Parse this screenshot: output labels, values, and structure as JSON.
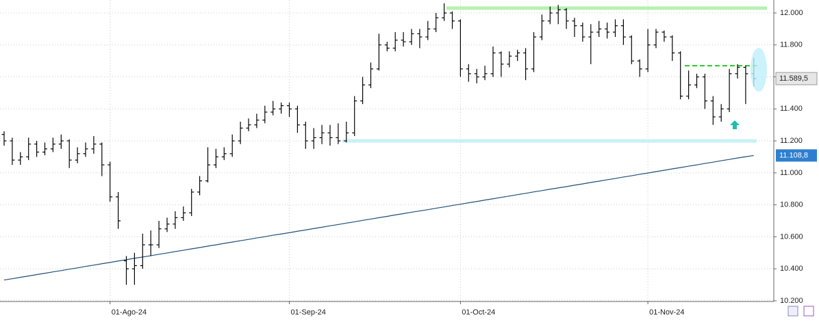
{
  "chart_data": {
    "type": "ohlc",
    "color": "#000000",
    "last_label": "11.589,5",
    "ylim": [
      10200,
      12081
    ],
    "yticks": [
      {
        "value": 10200,
        "label": "10.200"
      },
      {
        "value": 10400,
        "label": "10.400"
      },
      {
        "value": 10600,
        "label": "10.600"
      },
      {
        "value": 10800,
        "label": "10.800"
      },
      {
        "value": 11000,
        "label": "11.000"
      },
      {
        "value": 11200,
        "label": "11.200"
      },
      {
        "value": 11400,
        "label": "11.400"
      },
      {
        "value": 11600,
        "label": "11.600"
      },
      {
        "value": 11800,
        "label": "11.800"
      },
      {
        "value": 12000,
        "label": "12.000"
      }
    ],
    "grid": true,
    "categories": [
      null,
      null,
      null,
      null,
      null,
      null,
      null,
      null,
      null,
      null,
      null,
      null,
      null,
      "01-Ago-24",
      null,
      null,
      null,
      null,
      null,
      null,
      null,
      null,
      null,
      null,
      null,
      null,
      null,
      null,
      null,
      null,
      null,
      null,
      null,
      null,
      null,
      "01-Sep-24",
      null,
      null,
      null,
      null,
      null,
      null,
      null,
      null,
      null,
      null,
      null,
      null,
      null,
      null,
      null,
      null,
      null,
      null,
      null,
      null,
      "01-Oct-24",
      null,
      null,
      null,
      null,
      null,
      null,
      null,
      null,
      null,
      null,
      null,
      null,
      null,
      null,
      null,
      null,
      null,
      null,
      null,
      null,
      null,
      null,
      "01-Nov-24",
      null,
      null,
      null,
      null,
      null,
      null,
      null,
      null,
      null,
      null,
      null,
      null,
      null
    ],
    "ohlc": [
      [
        11240,
        11260,
        11170,
        11200
      ],
      [
        11200,
        11220,
        11050,
        11080
      ],
      [
        11080,
        11130,
        11050,
        11100
      ],
      [
        11100,
        11220,
        11080,
        11180
      ],
      [
        11180,
        11200,
        11100,
        11130
      ],
      [
        11130,
        11190,
        11110,
        11150
      ],
      [
        11150,
        11220,
        11130,
        11180
      ],
      [
        11180,
        11240,
        11150,
        11200
      ],
      [
        11200,
        11210,
        11030,
        11080
      ],
      [
        11080,
        11160,
        11060,
        11120
      ],
      [
        11120,
        11190,
        11100,
        11150
      ],
      [
        11150,
        11230,
        11120,
        11180
      ],
      [
        11180,
        11190,
        10980,
        11050
      ],
      [
        11050,
        11070,
        10820,
        10850
      ],
      [
        10850,
        10880,
        10650,
        10700
      ],
      [
        10450,
        10480,
        10300,
        10400
      ],
      [
        10400,
        10500,
        10300,
        10420
      ],
      [
        10420,
        10620,
        10400,
        10550
      ],
      [
        10550,
        10640,
        10480,
        10550
      ],
      [
        10550,
        10700,
        10530,
        10650
      ],
      [
        10650,
        10720,
        10630,
        10680
      ],
      [
        10680,
        10760,
        10650,
        10720
      ],
      [
        10720,
        10790,
        10700,
        10750
      ],
      [
        10750,
        10900,
        10730,
        10880
      ],
      [
        10880,
        10980,
        10860,
        10950
      ],
      [
        10950,
        11160,
        10940,
        11050
      ],
      [
        11050,
        11150,
        11030,
        11100
      ],
      [
        11100,
        11160,
        11080,
        11120
      ],
      [
        11120,
        11240,
        11100,
        11200
      ],
      [
        11200,
        11320,
        11180,
        11280
      ],
      [
        11280,
        11340,
        11260,
        11300
      ],
      [
        11300,
        11370,
        11280,
        11330
      ],
      [
        11330,
        11420,
        11310,
        11380
      ],
      [
        11380,
        11450,
        11360,
        11400
      ],
      [
        11400,
        11440,
        11370,
        11420
      ],
      [
        11420,
        11440,
        11350,
        11400
      ],
      [
        11400,
        11420,
        11250,
        11300
      ],
      [
        11300,
        11320,
        11150,
        11200
      ],
      [
        11200,
        11280,
        11150,
        11220
      ],
      [
        11220,
        11300,
        11180,
        11250
      ],
      [
        11250,
        11300,
        11170,
        11220
      ],
      [
        11220,
        11310,
        11180,
        11200
      ],
      [
        11200,
        11320,
        11190,
        11250
      ],
      [
        11250,
        11480,
        11230,
        11450
      ],
      [
        11450,
        11600,
        11430,
        11550
      ],
      [
        11550,
        11690,
        11530,
        11650
      ],
      [
        11650,
        11870,
        11640,
        11800
      ],
      [
        11800,
        11820,
        11760,
        11780
      ],
      [
        11780,
        11880,
        11760,
        11830
      ],
      [
        11830,
        11880,
        11790,
        11820
      ],
      [
        11820,
        11900,
        11800,
        11870
      ],
      [
        11870,
        11900,
        11780,
        11850
      ],
      [
        11850,
        11950,
        11830,
        11900
      ],
      [
        11900,
        12000,
        11880,
        11970
      ],
      [
        11970,
        12060,
        11950,
        12000
      ],
      [
        12000,
        12010,
        11900,
        11950
      ],
      [
        11950,
        11960,
        11600,
        11650
      ],
      [
        11650,
        11680,
        11570,
        11620
      ],
      [
        11620,
        11650,
        11560,
        11600
      ],
      [
        11600,
        11670,
        11580,
        11620
      ],
      [
        11620,
        11790,
        11600,
        11750
      ],
      [
        11750,
        11760,
        11600,
        11680
      ],
      [
        11680,
        11760,
        11660,
        11730
      ],
      [
        11730,
        11770,
        11700,
        11750
      ],
      [
        11750,
        11780,
        11580,
        11650
      ],
      [
        11650,
        11880,
        11630,
        11850
      ],
      [
        11850,
        11990,
        11830,
        11950
      ],
      [
        11950,
        12040,
        11930,
        12000
      ],
      [
        12000,
        12050,
        11930,
        12020
      ],
      [
        12020,
        12030,
        11900,
        11950
      ],
      [
        11950,
        11970,
        11850,
        11920
      ],
      [
        11920,
        11940,
        11820,
        11850
      ],
      [
        11850,
        11930,
        11680,
        11880
      ],
      [
        11880,
        11950,
        11850,
        11900
      ],
      [
        11900,
        11940,
        11840,
        11880
      ],
      [
        11880,
        11960,
        11850,
        11920
      ],
      [
        11920,
        11960,
        11800,
        11850
      ],
      [
        11850,
        11860,
        11680,
        11700
      ],
      [
        11700,
        11710,
        11600,
        11650
      ],
      [
        11650,
        11900,
        11630,
        11800
      ],
      [
        11800,
        11900,
        11780,
        11880
      ],
      [
        11880,
        11890,
        11820,
        11850
      ],
      [
        11850,
        11860,
        11700,
        11750
      ],
      [
        11750,
        11760,
        11460,
        11480
      ],
      [
        11480,
        11640,
        11460,
        11550
      ],
      [
        11550,
        11620,
        11530,
        11600
      ],
      [
        11600,
        11620,
        11400,
        11450
      ],
      [
        11450,
        11480,
        11300,
        11350
      ],
      [
        11350,
        11430,
        11320,
        11400
      ],
      [
        11400,
        11650,
        11380,
        11620
      ],
      [
        11620,
        11680,
        11590,
        11660
      ],
      [
        11660,
        11670,
        11430,
        11620
      ],
      [
        11620,
        11720,
        11540,
        11589.5
      ]
    ],
    "ma": {
      "color": "#1f4e79",
      "last_label": "11.108,8",
      "values": [
        10330,
        10338,
        10347,
        10355,
        10364,
        10372,
        10381,
        10389,
        10398,
        10406,
        10415,
        10423,
        10432,
        10440,
        10449,
        10457,
        10466,
        10474,
        10482,
        10491,
        10499,
        10508,
        10516,
        10525,
        10533,
        10542,
        10550,
        10559,
        10567,
        10576,
        10584,
        10593,
        10601,
        10610,
        10618,
        10626,
        10635,
        10643,
        10652,
        10660,
        10669,
        10677,
        10686,
        10694,
        10703,
        10711,
        10720,
        10728,
        10737,
        10745,
        10754,
        10762,
        10770,
        10779,
        10787,
        10796,
        10804,
        10813,
        10821,
        10830,
        10838,
        10847,
        10855,
        10864,
        10872,
        10881,
        10889,
        10898,
        10906,
        10914,
        10923,
        10931,
        10940,
        10948,
        10957,
        10965,
        10974,
        10982,
        10991,
        10999,
        11008,
        11016,
        11025,
        11033,
        11042,
        11050,
        11059,
        11067,
        11076,
        11084,
        11093,
        11101,
        11108.8
      ]
    },
    "levels": [
      {
        "value": 12030,
        "color": "#b6f0b0",
        "dashed": false
      },
      {
        "value": 11200,
        "color": "#c8f0f7",
        "dashed": false
      },
      {
        "value": 11670,
        "color": "#22cc22",
        "dashed": true
      }
    ]
  }
}
